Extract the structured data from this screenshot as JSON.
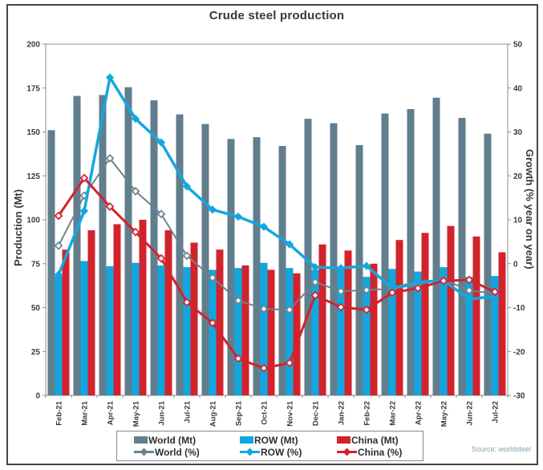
{
  "source_note": "Source: worldsteel",
  "colors": {
    "frame": "#454545",
    "axis": "#8c8c8c",
    "tick_text": "#3a3a3a",
    "world_bar": "#617e8d",
    "row_bar": "#12a6e0",
    "china_bar": "#d2232c",
    "world_line": "#6d8291",
    "row_line": "#14a7e0",
    "china_line": "#d2232c",
    "source_text": "#84a0af"
  },
  "legend": {
    "items": [
      "World (Mt)",
      "ROW (Mt)",
      "China (Mt)",
      "World (%)",
      "ROW (%)",
      "China (%)"
    ]
  },
  "chart_data": {
    "type": "bar+line combo",
    "title": "Crude steel production",
    "ylabel_left": "Production (Mt)",
    "ylabel_right": "Growth (% year on year)",
    "ylim_left": [
      0,
      200
    ],
    "yticks_left": [
      0,
      25,
      50,
      75,
      100,
      125,
      150,
      175,
      200
    ],
    "ylim_right": [
      -30,
      50
    ],
    "yticks_right": [
      -30,
      -20,
      -10,
      0,
      10,
      20,
      30,
      40,
      50
    ],
    "grid": false,
    "legend_position": "bottom",
    "categories": [
      "Feb-21",
      "Mar-21",
      "Apr-21",
      "May-21",
      "Jun-21",
      "Jul-21",
      "Aug-21",
      "Sep-21",
      "Oct-21",
      "Nov-21",
      "Dec-21",
      "Jan-22",
      "Feb-22",
      "Mar-22",
      "Apr-22",
      "May-22",
      "Jun-22",
      "Jul-22"
    ],
    "bar_series": [
      {
        "id": "world-mt",
        "name": "World (Mt)",
        "axis": "left",
        "color": "#617e8d",
        "values": [
          151,
          170.5,
          171,
          175.5,
          168,
          160,
          154.5,
          146,
          147,
          142,
          157.5,
          155,
          142.5,
          160.5,
          163,
          169.5,
          158,
          149
        ]
      },
      {
        "id": "row-mt",
        "name": "ROW (Mt)",
        "axis": "left",
        "color": "#12a6e0",
        "values": [
          68,
          76.5,
          73.5,
          75.5,
          74,
          73,
          71.5,
          72.5,
          75.5,
          72.5,
          71.5,
          72.5,
          67.5,
          72,
          70.5,
          73,
          67.5,
          68
        ]
      },
      {
        "id": "china-mt",
        "name": "China (Mt)",
        "axis": "left",
        "color": "#d2232c",
        "values": [
          83,
          94,
          97.5,
          100,
          94,
          87,
          83,
          74,
          71.5,
          69.5,
          86,
          82.5,
          75,
          88.5,
          92.5,
          96.5,
          90.5,
          81.5
        ]
      }
    ],
    "line_series": [
      {
        "id": "world-pct",
        "name": "World (%)",
        "axis": "right",
        "color": "#6d8291",
        "width": 2,
        "marker": "open",
        "values": [
          4.1,
          15.5,
          24,
          16.5,
          11.3,
          1.8,
          -3.2,
          -8.4,
          -10.3,
          -10.5,
          -4.2,
          -6.3,
          -6,
          -5.7,
          -4.7,
          -3.6,
          -6.1,
          -6.8
        ]
      },
      {
        "id": "row-pct",
        "name": "ROW (%)",
        "axis": "right",
        "color": "#14a7e0",
        "width": 3.5,
        "marker": "solid",
        "values": [
          -2.5,
          12,
          42.4,
          33,
          27.6,
          17.6,
          12.3,
          10.7,
          8.4,
          4.4,
          -0.8,
          -1,
          -0.5,
          -5.6,
          -4.2,
          -3.8,
          -8.1,
          -7.4
        ]
      },
      {
        "id": "china-pct",
        "name": "China (%)",
        "axis": "right",
        "color": "#d2232c",
        "width": 3,
        "marker": "open",
        "values": [
          10.9,
          19.5,
          13,
          7.2,
          1.2,
          -8.8,
          -13.5,
          -21.6,
          -23.8,
          -22.6,
          -7.2,
          -9.9,
          -10.5,
          -6.6,
          -5.6,
          -3.9,
          -3.7,
          -6.4
        ]
      }
    ]
  }
}
